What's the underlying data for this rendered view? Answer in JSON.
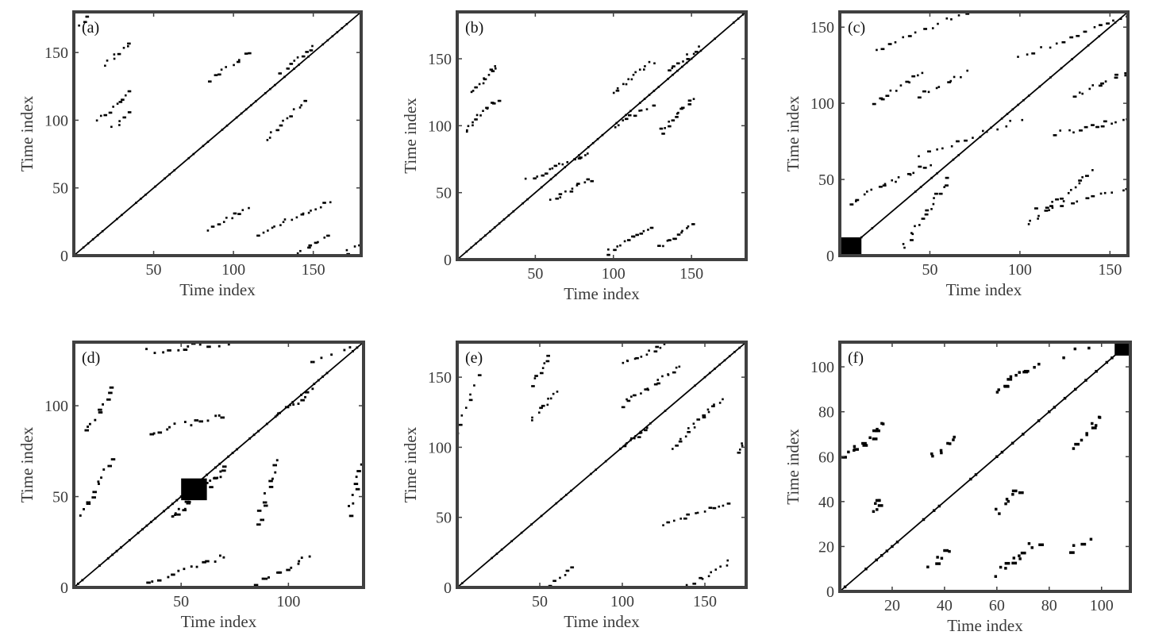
{
  "chart_data": [
    {
      "type": "scatter",
      "panel_label": "(a)",
      "xlabel": "Time index",
      "ylabel": "Time index",
      "xlim": [
        0,
        180
      ],
      "ylim": [
        0,
        180
      ],
      "xticks": [
        50,
        100,
        150
      ],
      "yticks": [
        0,
        50,
        100,
        150
      ],
      "grid": false,
      "description_points": {
        "diagonal": true,
        "segments": [
          {
            "x0": 15,
            "y0": 100,
            "x1": 35,
            "y1": 120,
            "n": 10
          },
          {
            "x0": 20,
            "y0": 140,
            "x1": 35,
            "y1": 158,
            "n": 8
          },
          {
            "x0": 25,
            "y0": 95,
            "x1": 35,
            "y1": 105,
            "n": 5
          },
          {
            "x0": 85,
            "y0": 20,
            "x1": 110,
            "y1": 35,
            "n": 10
          },
          {
            "x0": 115,
            "y0": 15,
            "x1": 160,
            "y1": 40,
            "n": 18
          },
          {
            "x0": 140,
            "y0": 2,
            "x1": 160,
            "y1": 15,
            "n": 8
          },
          {
            "x0": 85,
            "y0": 130,
            "x1": 110,
            "y1": 150,
            "n": 10
          },
          {
            "x0": 120,
            "y0": 85,
            "x1": 145,
            "y1": 115,
            "n": 12
          },
          {
            "x0": 130,
            "y0": 135,
            "x1": 150,
            "y1": 155,
            "n": 10
          },
          {
            "x0": 170,
            "y0": 0,
            "x1": 180,
            "y1": 12,
            "n": 5
          },
          {
            "x0": 0,
            "y0": 168,
            "x1": 12,
            "y1": 180,
            "n": 5
          }
        ]
      }
    },
    {
      "type": "scatter",
      "panel_label": "(b)",
      "xlabel": "Time index",
      "ylabel": "Time index",
      "xlim": [
        0,
        185
      ],
      "ylim": [
        0,
        185
      ],
      "xticks": [
        50,
        100,
        150
      ],
      "yticks": [
        0,
        50,
        100,
        150
      ],
      "grid": false,
      "description_points": {
        "diagonal": true,
        "segments": [
          {
            "x0": 5,
            "y0": 95,
            "x1": 25,
            "y1": 120,
            "n": 14
          },
          {
            "x0": 10,
            "y0": 125,
            "x1": 25,
            "y1": 145,
            "n": 12
          },
          {
            "x0": 95,
            "y0": 5,
            "x1": 125,
            "y1": 25,
            "n": 14
          },
          {
            "x0": 130,
            "y0": 10,
            "x1": 150,
            "y1": 25,
            "n": 12
          },
          {
            "x0": 45,
            "y0": 60,
            "x1": 85,
            "y1": 80,
            "n": 16
          },
          {
            "x0": 60,
            "y0": 45,
            "x1": 85,
            "y1": 60,
            "n": 12
          },
          {
            "x0": 100,
            "y0": 125,
            "x1": 125,
            "y1": 148,
            "n": 14
          },
          {
            "x0": 130,
            "y0": 95,
            "x1": 150,
            "y1": 120,
            "n": 14
          },
          {
            "x0": 100,
            "y0": 100,
            "x1": 125,
            "y1": 115,
            "n": 10
          },
          {
            "x0": 135,
            "y0": 140,
            "x1": 155,
            "y1": 158,
            "n": 10
          }
        ]
      }
    },
    {
      "type": "scatter",
      "panel_label": "(c)",
      "xlabel": "Time index",
      "ylabel": "Time index",
      "xlim": [
        0,
        160
      ],
      "ylim": [
        0,
        160
      ],
      "xticks": [
        50,
        100,
        150
      ],
      "yticks": [
        0,
        50,
        100,
        150
      ],
      "grid": false,
      "description_points": {
        "diagonal": true,
        "block": {
          "x0": 0,
          "y0": 0,
          "x1": 12,
          "y1": 12
        },
        "segments": [
          {
            "x0": 5,
            "y0": 35,
            "x1": 50,
            "y1": 60,
            "n": 18
          },
          {
            "x0": 35,
            "y0": 5,
            "x1": 60,
            "y1": 50,
            "n": 18
          },
          {
            "x0": 20,
            "y0": 100,
            "x1": 45,
            "y1": 120,
            "n": 12
          },
          {
            "x0": 45,
            "y0": 105,
            "x1": 70,
            "y1": 120,
            "n": 10
          },
          {
            "x0": 105,
            "y0": 20,
            "x1": 140,
            "y1": 55,
            "n": 18
          },
          {
            "x0": 110,
            "y0": 30,
            "x1": 160,
            "y1": 45,
            "n": 14
          },
          {
            "x0": 120,
            "y0": 80,
            "x1": 160,
            "y1": 90,
            "n": 14
          },
          {
            "x0": 130,
            "y0": 105,
            "x1": 160,
            "y1": 120,
            "n": 12
          },
          {
            "x0": 20,
            "y0": 135,
            "x1": 70,
            "y1": 160,
            "n": 14
          },
          {
            "x0": 100,
            "y0": 130,
            "x1": 160,
            "y1": 158,
            "n": 16
          },
          {
            "x0": 45,
            "y0": 65,
            "x1": 100,
            "y1": 90,
            "n": 14
          }
        ]
      }
    },
    {
      "type": "scatter",
      "panel_label": "(d)",
      "xlabel": "Time index",
      "ylabel": "Time index",
      "xlim": [
        0,
        135
      ],
      "ylim": [
        0,
        135
      ],
      "xticks": [
        50,
        100
      ],
      "yticks": [
        0,
        50,
        100
      ],
      "grid": false,
      "description_points": {
        "diagonal": true,
        "block": {
          "x0": 50,
          "y0": 48,
          "x1": 62,
          "y1": 60
        },
        "segments": [
          {
            "x0": 45,
            "y0": 38,
            "x1": 70,
            "y1": 65,
            "n": 30
          },
          {
            "x0": 95,
            "y0": 95,
            "x1": 110,
            "y1": 108,
            "n": 10
          },
          {
            "x0": 35,
            "y0": 85,
            "x1": 70,
            "y1": 95,
            "n": 14
          },
          {
            "x0": 85,
            "y0": 35,
            "x1": 95,
            "y1": 70,
            "n": 12
          },
          {
            "x0": 2,
            "y0": 40,
            "x1": 18,
            "y1": 70,
            "n": 12
          },
          {
            "x0": 5,
            "y0": 85,
            "x1": 18,
            "y1": 110,
            "n": 10
          },
          {
            "x0": 35,
            "y0": 2,
            "x1": 70,
            "y1": 18,
            "n": 14
          },
          {
            "x0": 85,
            "y0": 2,
            "x1": 110,
            "y1": 18,
            "n": 12
          },
          {
            "x0": 35,
            "y0": 130,
            "x1": 75,
            "y1": 135,
            "n": 14
          },
          {
            "x0": 128,
            "y0": 40,
            "x1": 135,
            "y1": 70,
            "n": 10
          },
          {
            "x0": 110,
            "y0": 125,
            "x1": 135,
            "y1": 135,
            "n": 6
          }
        ]
      }
    },
    {
      "type": "scatter",
      "panel_label": "(e)",
      "xlabel": "Time index",
      "ylabel": "Time index",
      "xlim": [
        0,
        175
      ],
      "ylim": [
        0,
        175
      ],
      "xticks": [
        50,
        100,
        150
      ],
      "yticks": [
        0,
        50,
        100,
        150
      ],
      "grid": false,
      "description_points": {
        "diagonal": true,
        "segments": [
          {
            "x0": 100,
            "y0": 130,
            "x1": 135,
            "y1": 158,
            "n": 18
          },
          {
            "x0": 100,
            "y0": 160,
            "x1": 130,
            "y1": 175,
            "n": 14
          },
          {
            "x0": 130,
            "y0": 100,
            "x1": 160,
            "y1": 135,
            "n": 18
          },
          {
            "x0": 125,
            "y0": 45,
            "x1": 165,
            "y1": 60,
            "n": 14
          },
          {
            "x0": 45,
            "y0": 120,
            "x1": 60,
            "y1": 140,
            "n": 10
          },
          {
            "x0": 45,
            "y0": 145,
            "x1": 55,
            "y1": 165,
            "n": 8
          },
          {
            "x0": 100,
            "y0": 100,
            "x1": 115,
            "y1": 115,
            "n": 10
          },
          {
            "x0": 0,
            "y0": 110,
            "x1": 12,
            "y1": 150,
            "n": 8
          },
          {
            "x0": 55,
            "y0": 2,
            "x1": 70,
            "y1": 15,
            "n": 6
          },
          {
            "x0": 140,
            "y0": 2,
            "x1": 165,
            "y1": 18,
            "n": 10
          },
          {
            "x0": 170,
            "y0": 95,
            "x1": 175,
            "y1": 110,
            "n": 6
          }
        ]
      }
    },
    {
      "type": "scatter",
      "panel_label": "(f)",
      "xlabel": "Time index",
      "ylabel": "Time index",
      "xlim": [
        0,
        111
      ],
      "ylim": [
        0,
        111
      ],
      "xticks": [
        20,
        40,
        60,
        80,
        100
      ],
      "yticks": [
        0,
        20,
        40,
        60,
        80,
        100
      ],
      "grid": false,
      "description_points": {
        "diagonal": true,
        "block": {
          "x0": 105,
          "y0": 105,
          "x1": 111,
          "y1": 111
        },
        "segments": [
          {
            "x0": 2,
            "y0": 60,
            "x1": 18,
            "y1": 75,
            "n": 14
          },
          {
            "x0": 12,
            "y0": 36,
            "x1": 16,
            "y1": 42,
            "n": 6
          },
          {
            "x0": 35,
            "y0": 60,
            "x1": 45,
            "y1": 68,
            "n": 8
          },
          {
            "x0": 60,
            "y0": 90,
            "x1": 75,
            "y1": 100,
            "n": 12
          },
          {
            "x0": 60,
            "y0": 35,
            "x1": 68,
            "y1": 45,
            "n": 8
          },
          {
            "x0": 60,
            "y0": 8,
            "x1": 75,
            "y1": 22,
            "n": 12
          },
          {
            "x0": 35,
            "y0": 12,
            "x1": 42,
            "y1": 18,
            "n": 6
          },
          {
            "x0": 90,
            "y0": 65,
            "x1": 100,
            "y1": 78,
            "n": 10
          },
          {
            "x0": 88,
            "y0": 18,
            "x1": 95,
            "y1": 22,
            "n": 4
          },
          {
            "x0": 85,
            "y0": 105,
            "x1": 100,
            "y1": 111,
            "n": 4
          }
        ]
      }
    }
  ]
}
